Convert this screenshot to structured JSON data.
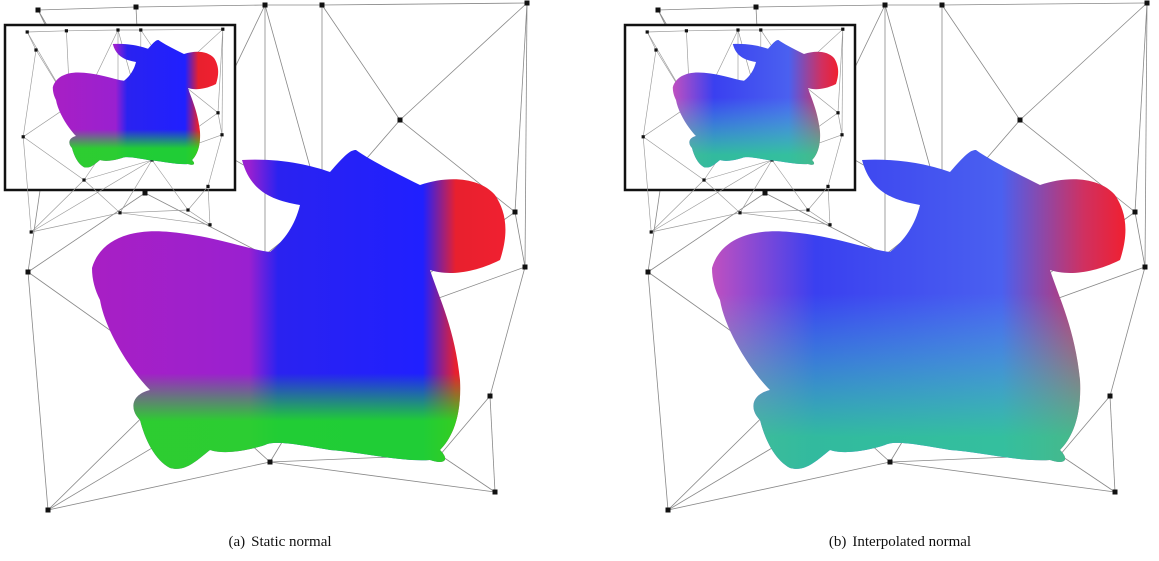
{
  "figure": {
    "panels": [
      {
        "label": "(a)",
        "caption": "Static normal"
      },
      {
        "label": "(b)",
        "caption": "Interpolated normal"
      }
    ]
  }
}
